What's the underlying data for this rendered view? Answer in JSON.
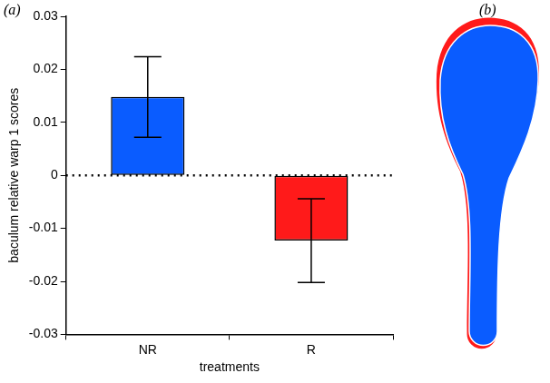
{
  "chart_data": {
    "type": "bar",
    "categories": [
      "NR",
      "R"
    ],
    "values": [
      0.0148,
      -0.0123
    ],
    "errors": [
      0.0076,
      0.0079
    ],
    "colors": [
      "#0a5cff",
      "#ff1a1a"
    ],
    "x_label": "treatments",
    "y_label": "baculum relative warp 1 scores",
    "ylim": [
      -0.03,
      0.03
    ],
    "yticks": [
      -0.03,
      -0.02,
      -0.01,
      0,
      0.01,
      0.02,
      0.03
    ],
    "grid": false,
    "annotations": [
      "(a)"
    ]
  },
  "diagram": {
    "label": "(b)"
  }
}
